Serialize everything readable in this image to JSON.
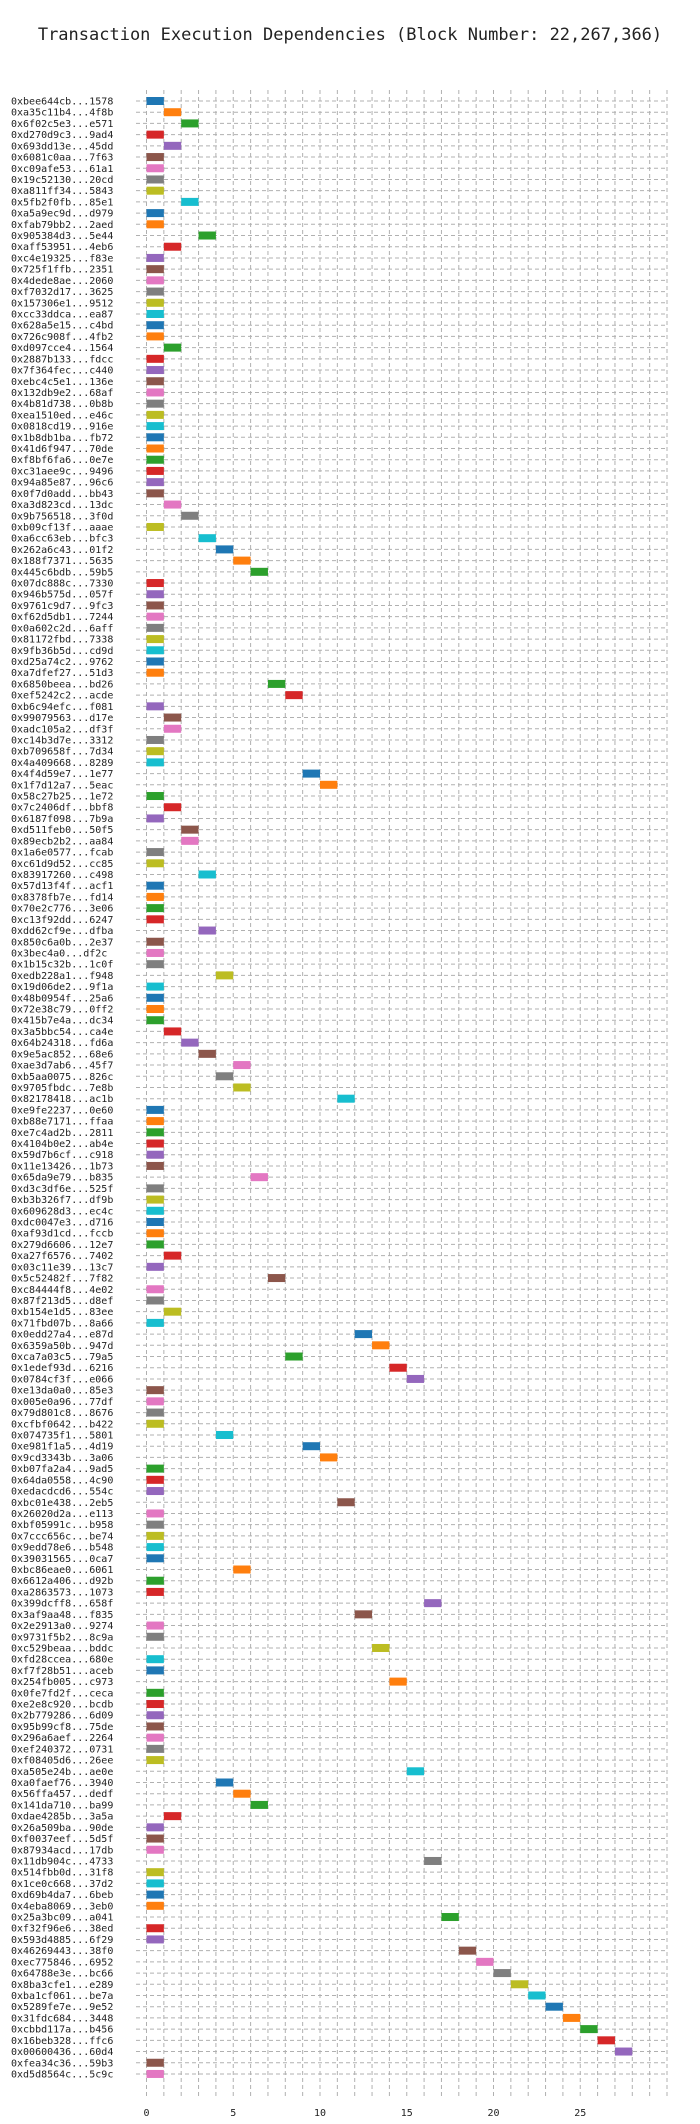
{
  "chart_data": {
    "type": "gantt",
    "title": "Transaction Execution Dependencies (Block Number: 22,267,366)",
    "xlabel": "",
    "ylabel": "",
    "xlim": [
      -2,
      30
    ],
    "xticks": [
      0,
      5,
      10,
      15,
      20,
      25
    ],
    "grid": true,
    "palette": [
      "#1f77b4",
      "#ff7f0e",
      "#2ca02c",
      "#d62728",
      "#9467bd",
      "#8c564b",
      "#e377c2",
      "#7f7f7f",
      "#bcbd22",
      "#17becf"
    ],
    "transactions": [
      "0xbee644cb...1578",
      "0xa35c11b4...4f8b",
      "0x6f02c5e3...e571",
      "0xd270d9c3...9ad4",
      "0x693dd13e...45dd",
      "0x6081c0aa...7f63",
      "0xc09afe53...61a1",
      "0x19c52130...20cd",
      "0xa811ff34...5843",
      "0x5fb2f0fb...85e1",
      "0xa5a9ec9d...d979",
      "0xfab79bb2...2aed",
      "0x905384d3...5e44",
      "0xaff53951...4eb6",
      "0xc4e19325...f83e",
      "0x725f1ffb...2351",
      "0x4dede8ae...2060",
      "0xf7032d17...3625",
      "0x157306e1...9512",
      "0xcc33ddca...ea87",
      "0x628a5e15...c4bd",
      "0x726c908f...4fb2",
      "0xd097cce4...1564",
      "0x2887b133...fdcc",
      "0x7f364fec...c440",
      "0xebc4c5e1...136e",
      "0x132db9e2...68af",
      "0x4b81d738...0b8b",
      "0xea1510ed...e46c",
      "0x0818cd19...916e",
      "0x1b8db1ba...fb72",
      "0x41d6f947...70de",
      "0xf8bf6fa6...0e7e",
      "0xc31aee9c...9496",
      "0x94a85e87...96c6",
      "0x0f7d0add...bb43",
      "0xa3d823cd...13dc",
      "0x9b756518...3f0d",
      "0xb09cf13f...aaae",
      "0xa6cc63eb...bfc3",
      "0x262a6c43...01f2",
      "0x188f7371...5635",
      "0x445c6bdb...59b5",
      "0x07dc888c...7330",
      "0x946b575d...057f",
      "0x9761c9d7...9fc3",
      "0xf62d5db1...7244",
      "0x0a602c2d...6aff",
      "0x81172fbd...7338",
      "0x9fb36b5d...cd9d",
      "0xd25a74c2...9762",
      "0xa7dfef27...51d3",
      "0x6850beea...bd26",
      "0xef5242c2...acde",
      "0xb6c94efc...f081",
      "0x99079563...d17e",
      "0xadc105a2...df3f",
      "0xc14b3d7e...3312",
      "0xb709658f...7d34",
      "0x4a409668...8289",
      "0x4f4d59e7...1e77",
      "0x1f7d12a7...5eac",
      "0x58c27b25...1e72",
      "0x7c2406df...bbf8",
      "0x6187f098...7b9a",
      "0xd511feb0...50f5",
      "0x89ecb2b2...aa84",
      "0x1a6e0577...fcab",
      "0xc61d9d52...cc85",
      "0x83917260...c498",
      "0x57d13f4f...acf1",
      "0x8378fb7e...fd14",
      "0x70e2c776...3e06",
      "0xc13f92dd...6247",
      "0xdd62cf9e...dfba",
      "0x850c6a0b...2e37",
      "0x3bec4a0...df2c",
      "0x1b15c32b...1c0f",
      "0xedb228a1...f948",
      "0x19d06de2...9f1a",
      "0x48b0954f...25a6",
      "0x72e38c79...0ff2",
      "0x415b7e4a...dc34",
      "0x3a5bbc54...ca4e",
      "0x64b24318...fd6a",
      "0x9e5ac852...68e6",
      "0xae3d7ab6...45f7",
      "0xb5aa0075...826c",
      "0x9705fbdc...7e8b",
      "0x82178418...ac1b",
      "0xe9fe2237...0e60",
      "0xb88e7171...ffaa",
      "0xe7c4ad2b...2811",
      "0x4104b0e2...ab4e",
      "0x59d7b6cf...c918",
      "0x11e13426...1b73",
      "0x65da9e79...b835",
      "0xd3c3df6e...525f",
      "0xb3b326f7...df9b",
      "0x609628d3...ec4c",
      "0xdc0047e3...d716",
      "0xaf93d1cd...fccb",
      "0x279d6606...12e7",
      "0xa27f6576...7402",
      "0x03c11e39...13c7",
      "0x5c52482f...7f82",
      "0xc84444f8...4e02",
      "0x87f213d5...d8ef",
      "0xb154e1d5...83ee",
      "0x71fbd07b...8a66",
      "0x0edd27a4...e87d",
      "0x6359a50b...947d",
      "0xca7a03c5...79a5",
      "0x1edef93d...6216",
      "0x0784cf3f...e066",
      "0xe13da0a0...85e3",
      "0x005e0a96...77df",
      "0x79d801c8...8676",
      "0xcfbf0642...b422",
      "0x074735f1...5801",
      "0xe981f1a5...4d19",
      "0x9cd3343b...3a06",
      "0xb07fa2a4...9ad5",
      "0x64da0558...4c90",
      "0xedacdcd6...554c",
      "0xbc01e438...2eb5",
      "0x26020d2a...e113",
      "0xbf05991c...b958",
      "0x7ccc656c...be74",
      "0x9edd78e6...b548",
      "0x39031565...0ca7",
      "0xbc86eae0...6061",
      "0x6612a406...d92b",
      "0xa2863573...1073",
      "0x399dcff8...658f",
      "0x3af9aa48...f835",
      "0x2e2913a0...9274",
      "0x9731f5b2...8c9a",
      "0xc529beaa...bddc",
      "0xfd28ccea...680e",
      "0xf7f28b51...aceb",
      "0x254fb005...c973",
      "0x0fe7fd2f...ceca",
      "0xe2e8c920...bcdb",
      "0x2b779286...6d09",
      "0x95b99cf8...75de",
      "0x296a6aef...2264",
      "0xef240372...0731",
      "0xf08405d6...26ee",
      "0xa505e24b...ae0e",
      "0xa0faef76...3940",
      "0x56ffa457...dedf",
      "0x141da710...ba99",
      "0xdae4285b...3a5a",
      "0x26a509ba...90de",
      "0xf0037eef...5d5f",
      "0x87934acd...17db",
      "0x11db904c...4733",
      "0x514fbb0d...31f8",
      "0x1ce0c668...37d2",
      "0xd69b4da7...6beb",
      "0x4eba8069...3eb0",
      "0x25a3bc09...a041",
      "0xf32f96e6...38ed",
      "0x593d4885...6f29",
      "0x46269443...38f0",
      "0xec775846...6952",
      "0x64788e3e...bc66",
      "0x8ba3cfe1...e289",
      "0xba1cf061...be7a",
      "0x5289fe7e...9e52",
      "0x31fdc684...3448",
      "0xcbbd117a...b456",
      "0x16beb328...ffc6",
      "0x00600436...60d4",
      "0xfea34c36...59b3",
      "0xd5d8564c...5c9c"
    ],
    "starts": [
      0,
      1,
      2,
      0,
      1,
      0,
      0,
      0,
      0,
      2,
      0,
      0,
      3,
      1,
      0,
      0,
      0,
      0,
      0,
      0,
      0,
      0,
      1,
      0,
      0,
      0,
      0,
      0,
      0,
      0,
      0,
      0,
      0,
      0,
      0,
      0,
      1,
      2,
      0,
      3,
      4,
      5,
      6,
      0,
      0,
      0,
      0,
      0,
      0,
      0,
      0,
      0,
      7,
      8,
      0,
      1,
      1,
      0,
      0,
      0,
      9,
      10,
      0,
      1,
      0,
      2,
      2,
      0,
      0,
      3,
      0,
      0,
      0,
      0,
      3,
      0,
      0,
      0,
      4,
      0,
      0,
      0,
      0,
      1,
      2,
      3,
      5,
      4,
      5,
      11,
      0,
      0,
      0,
      0,
      0,
      0,
      6,
      0,
      0,
      0,
      0,
      0,
      0,
      1,
      0,
      7,
      0,
      0,
      1,
      0,
      12,
      13,
      8,
      14,
      15,
      0,
      0,
      0,
      0,
      4,
      9,
      10,
      0,
      0,
      0,
      11,
      0,
      0,
      0,
      0,
      0,
      5,
      0,
      0,
      16,
      12,
      0,
      0,
      13,
      0,
      0,
      14,
      0,
      0,
      0,
      0,
      0,
      0,
      0,
      15,
      4,
      5,
      6,
      1,
      0,
      0,
      0,
      16,
      0,
      0,
      0,
      0,
      17,
      0,
      0,
      18,
      19,
      20,
      21,
      22,
      23,
      24,
      25,
      26,
      27,
      0,
      0
    ]
  }
}
